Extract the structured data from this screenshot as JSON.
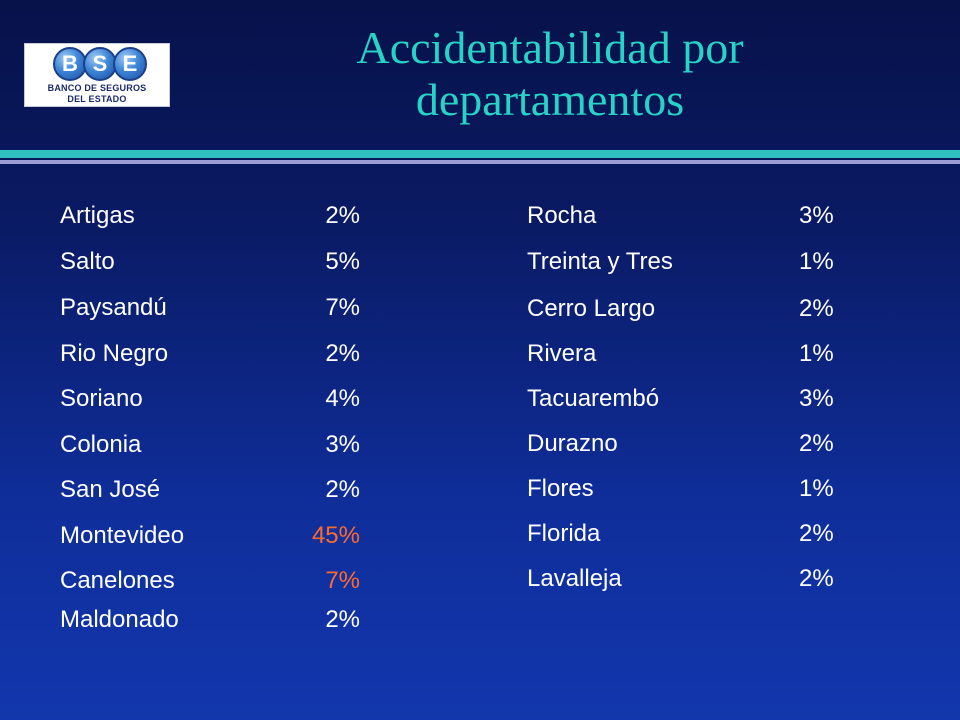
{
  "logo": {
    "letters": [
      "B",
      "S",
      "E"
    ],
    "line1": "BANCO DE SEGUROS",
    "line2": "DEL ESTADO"
  },
  "title": {
    "line1": "Accidentabilidad por",
    "line2": "departamentos"
  },
  "colors": {
    "title": "#27d3c7",
    "text": "#ffffff",
    "highlight": "#ff6a2b",
    "bar_teal": "#2fc2c0",
    "bar_lilac": "#9b9bd6"
  },
  "left": [
    {
      "name": "Artigas",
      "pct": "2%"
    },
    {
      "name": "Salto",
      "pct": "5%"
    },
    {
      "name": "Paysandú",
      "pct": "7%"
    },
    {
      "name": "Rio Negro",
      "pct": "2%"
    },
    {
      "name": "Soriano",
      "pct": "4%"
    },
    {
      "name": "Colonia",
      "pct": "3%"
    },
    {
      "name": "San José",
      "pct": "2%"
    },
    {
      "name": "Montevideo",
      "pct": "45%"
    },
    {
      "name": "Canelones",
      "pct": "7%"
    },
    {
      "name": "Maldonado",
      "pct": "2%"
    }
  ],
  "right": [
    {
      "name": "Rocha",
      "pct": "3%"
    },
    {
      "name": "Treinta y Tres",
      "pct": "1%"
    },
    {
      "name": "Cerro Largo",
      "pct": "2%"
    },
    {
      "name": "Rivera",
      "pct": "1%"
    },
    {
      "name": "Tacuarembó",
      "pct": "3%"
    },
    {
      "name": "Durazno",
      "pct": "2%"
    },
    {
      "name": "Flores",
      "pct": "1%"
    },
    {
      "name": "Florida",
      "pct": "2%"
    },
    {
      "name": "Lavalleja",
      "pct": "2%"
    }
  ]
}
